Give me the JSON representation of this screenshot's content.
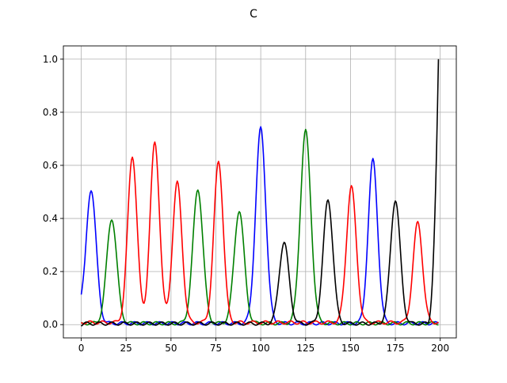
{
  "chart_data": {
    "type": "line",
    "title": "C",
    "xlabel": "",
    "ylabel": "",
    "xlim": [
      -9.95,
      208.95
    ],
    "ylim": [
      -0.05,
      1.05
    ],
    "xticks": [
      0,
      25,
      50,
      75,
      100,
      125,
      150,
      175,
      200
    ],
    "yticks": [
      0.0,
      0.2,
      0.4,
      0.6,
      0.8,
      1.0
    ],
    "xtick_labels": [
      "0",
      "25",
      "50",
      "75",
      "100",
      "125",
      "150",
      "175",
      "200"
    ],
    "ytick_labels": [
      "0.0",
      "0.2",
      "0.4",
      "0.6",
      "0.8",
      "1.0"
    ],
    "grid": true,
    "x_range": [
      0,
      199
    ],
    "series": [
      {
        "color": "#0000ff",
        "baseline": 0.005,
        "start_value": 0.04,
        "peaks": [
          {
            "center": 5.5,
            "height": 0.51,
            "width": 2.8
          },
          {
            "center": 100,
            "height": 0.74,
            "width": 2.8
          },
          {
            "center": 162.5,
            "height": 0.62,
            "width": 2.6
          }
        ]
      },
      {
        "color": "#008000",
        "baseline": 0.005,
        "start_value": 0.0,
        "peaks": [
          {
            "center": 17,
            "height": 0.4,
            "width": 2.8
          },
          {
            "center": 65,
            "height": 0.51,
            "width": 2.8
          },
          {
            "center": 88,
            "height": 0.43,
            "width": 2.8
          },
          {
            "center": 125,
            "height": 0.73,
            "width": 2.9
          }
        ]
      },
      {
        "color": "#ff0000",
        "baseline": 0.008,
        "start_value": 0.01,
        "peaks": [
          {
            "center": 28.5,
            "height": 0.635,
            "width": 2.6
          },
          {
            "center": 41,
            "height": 0.685,
            "width": 2.6
          },
          {
            "center": 53.5,
            "height": 0.535,
            "width": 2.6
          },
          {
            "center": 76.5,
            "height": 0.615,
            "width": 2.6
          },
          {
            "center": 150.5,
            "height": 0.52,
            "width": 2.7
          },
          {
            "center": 187.5,
            "height": 0.385,
            "width": 2.6
          }
        ]
      },
      {
        "color": "#000000",
        "baseline": 0.004,
        "start_value": 0.0,
        "peaks": [
          {
            "center": 113,
            "height": 0.31,
            "width": 2.7
          },
          {
            "center": 137.5,
            "height": 0.47,
            "width": 2.7
          },
          {
            "center": 175,
            "height": 0.47,
            "width": 2.7
          }
        ],
        "end_ramp": {
          "from_x": 193,
          "to_x": 199,
          "to_value": 1.0
        }
      }
    ]
  }
}
